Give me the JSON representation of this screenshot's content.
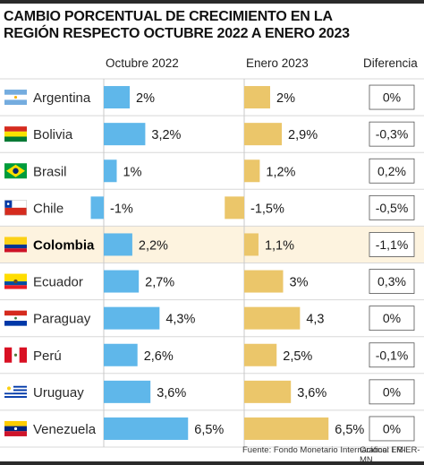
{
  "title_line1": "CAMBIO PORCENTUAL DE CRECIMIENTO EN LA",
  "title_line2": "REGIÓN RESPECTO OCTUBRE 2022 A ENERO 2023",
  "headers": {
    "oct": "Octubre 2022",
    "ene": "Enero 2023",
    "dif": "Diferencia"
  },
  "footer": {
    "source": "Fuente: Fondo Monetario Internacional FMI",
    "credit": "Gráfico: LR-ER-MN"
  },
  "colors": {
    "oct_bar": "#5fb7ea",
    "ene_bar": "#ebc66a",
    "highlight_row": "#fdf3df",
    "row_divider": "#d8d8d8",
    "axis_line": "#c9c9c9"
  },
  "highlight_country": "Colombia",
  "chart_data": {
    "type": "bar",
    "categories": [
      "Argentina",
      "Bolivia",
      "Brasil",
      "Chile",
      "Colombia",
      "Ecuador",
      "Paraguay",
      "Perú",
      "Uruguay",
      "Venezuela"
    ],
    "flags": [
      "flag-argentina-icon",
      "flag-bolivia-icon",
      "flag-brasil-icon",
      "flag-chile-icon",
      "flag-colombia-icon",
      "flag-ecuador-icon",
      "flag-paraguay-icon",
      "flag-peru-icon",
      "flag-uruguay-icon",
      "flag-venezuela-icon"
    ],
    "series": [
      {
        "name": "Octubre 2022",
        "values": [
          2,
          3.2,
          1,
          -1,
          2.2,
          2.7,
          4.3,
          2.6,
          3.6,
          6.5
        ],
        "labels": [
          "2%",
          "3,2%",
          "1%",
          "-1%",
          "2,2%",
          "2,7%",
          "4,3%",
          "2,6%",
          "3,6%",
          "6,5%"
        ]
      },
      {
        "name": "Enero 2023",
        "values": [
          2,
          2.9,
          1.2,
          -1.5,
          1.1,
          3,
          4.3,
          2.5,
          3.6,
          6.5
        ],
        "labels": [
          "2%",
          "2,9%",
          "1,2%",
          "-1,5%",
          "1,1%",
          "3%",
          "4,3",
          "2,5%",
          "3,6%",
          "6,5%"
        ]
      }
    ],
    "difference": {
      "name": "Diferencia",
      "values": [
        0,
        -0.3,
        0.2,
        -0.5,
        -1.1,
        0.3,
        0,
        -0.1,
        0,
        0
      ],
      "labels": [
        "0%",
        "-0,3%",
        "0,2%",
        "-0,5%",
        "-1,1%",
        "0,3%",
        "0%",
        "-0,1%",
        "0%",
        "0%"
      ]
    }
  }
}
